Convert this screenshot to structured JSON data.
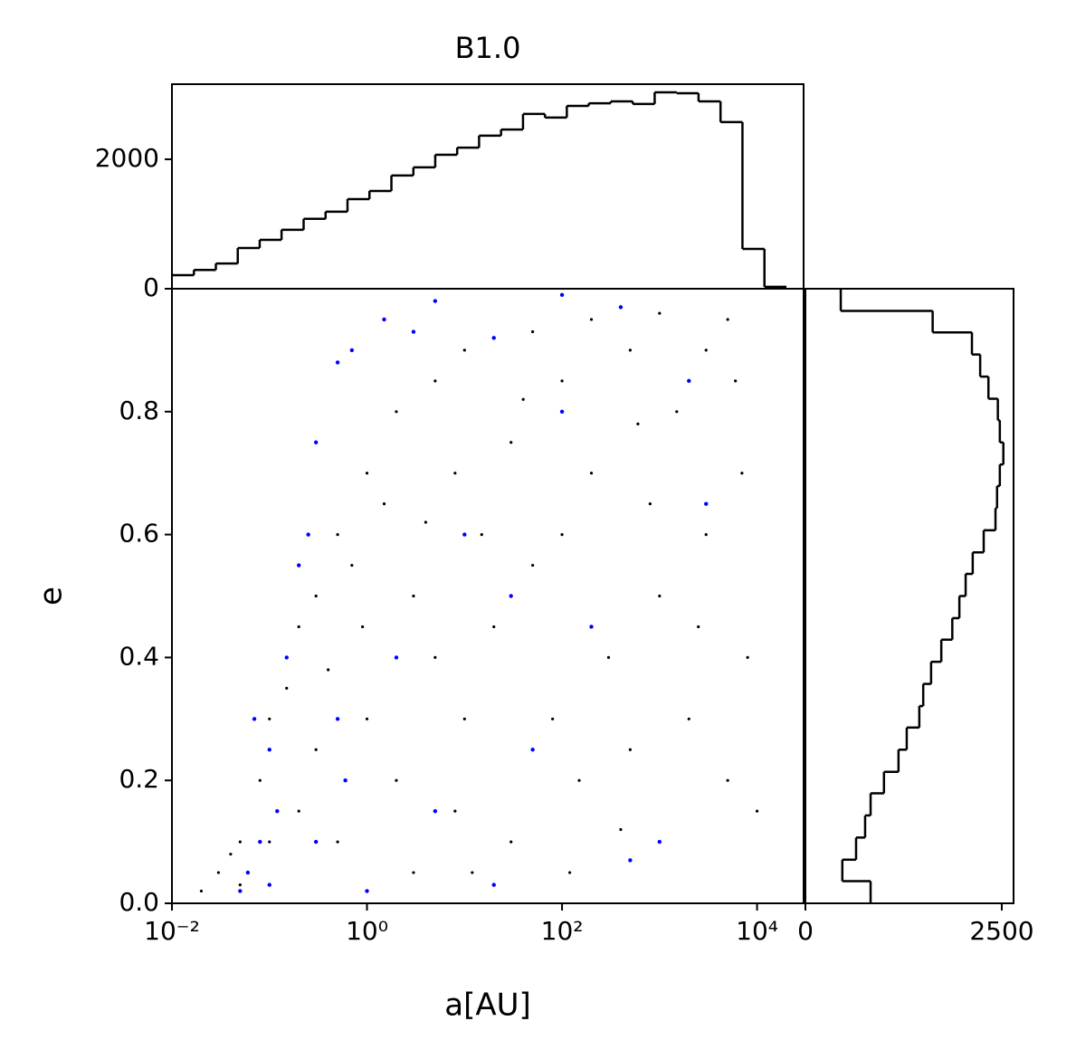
{
  "chart_data": [
    {
      "type": "scatter",
      "title": "B1.0",
      "xlabel": "a[AU]",
      "ylabel": "e",
      "xscale": "log",
      "xlim": [
        0.01,
        30000
      ],
      "ylim": [
        0,
        1
      ],
      "xticks": [
        {
          "value": 0.01,
          "label": "10⁻²"
        },
        {
          "value": 1,
          "label": "10⁰"
        },
        {
          "value": 100,
          "label": "10²"
        },
        {
          "value": 10000,
          "label": "10⁴"
        }
      ],
      "yticks": [
        {
          "value": 0,
          "label": "0.0"
        },
        0.2,
        0.4,
        0.6,
        0.8
      ],
      "series": [
        {
          "color": "#000000",
          "x": [
            0.02,
            0.03,
            0.05,
            0.05,
            0.08,
            0.1,
            0.1,
            0.15,
            0.2,
            0.2,
            0.3,
            0.3,
            0.5,
            0.5,
            0.7,
            1,
            1,
            1.5,
            2,
            2,
            3,
            3,
            5,
            5,
            8,
            8,
            10,
            10,
            15,
            20,
            20,
            30,
            30,
            50,
            50,
            80,
            100,
            100,
            150,
            200,
            200,
            300,
            500,
            500,
            800,
            1000,
            1000,
            1500,
            2000,
            3000,
            3000,
            5000,
            5000,
            7000,
            8000,
            10000,
            0.04,
            0.4,
            4,
            40,
            400,
            600,
            2500,
            6000,
            12,
            120,
            0.9
          ],
          "y": [
            0.02,
            0.05,
            0.1,
            0.03,
            0.2,
            0.3,
            0.1,
            0.35,
            0.45,
            0.15,
            0.5,
            0.25,
            0.6,
            0.1,
            0.55,
            0.7,
            0.3,
            0.65,
            0.8,
            0.2,
            0.5,
            0.05,
            0.85,
            0.4,
            0.7,
            0.15,
            0.9,
            0.3,
            0.6,
            0.92,
            0.45,
            0.75,
            0.1,
            0.55,
            0.93,
            0.3,
            0.85,
            0.6,
            0.2,
            0.95,
            0.7,
            0.4,
            0.9,
            0.25,
            0.65,
            0.96,
            0.5,
            0.8,
            0.3,
            0.9,
            0.6,
            0.95,
            0.2,
            0.7,
            0.4,
            0.15,
            0.08,
            0.38,
            0.62,
            0.82,
            0.12,
            0.78,
            0.45,
            0.85,
            0.05,
            0.05,
            0.45
          ]
        },
        {
          "color": "#0000ff",
          "x": [
            0.05,
            0.06,
            0.08,
            0.1,
            0.1,
            0.15,
            0.2,
            0.25,
            0.3,
            0.5,
            0.7,
            1.5,
            3,
            5,
            20,
            100,
            400,
            0.12,
            0.3,
            0.5,
            1,
            2,
            5,
            10,
            20,
            50,
            100,
            200,
            500,
            1000,
            2000,
            0.07,
            0.6,
            30,
            3000
          ],
          "y": [
            0.02,
            0.05,
            0.1,
            0.25,
            0.03,
            0.4,
            0.55,
            0.6,
            0.75,
            0.88,
            0.9,
            0.95,
            0.93,
            0.98,
            0.92,
            0.99,
            0.97,
            0.15,
            0.1,
            0.3,
            0.02,
            0.4,
            0.15,
            0.6,
            0.03,
            0.25,
            0.8,
            0.45,
            0.07,
            0.1,
            0.85,
            0.3,
            0.2,
            0.5,
            0.65
          ]
        }
      ]
    },
    {
      "type": "histogram",
      "orientation": "vertical",
      "xscale": "log",
      "color": "#000000",
      "xlim": [
        0.01,
        30000
      ],
      "ylim": [
        0,
        3160
      ],
      "yticks": [
        0,
        2000
      ],
      "bins": [
        0.01,
        0.0168,
        0.0282,
        0.0473,
        0.0794,
        0.133,
        0.224,
        0.376,
        0.631,
        1.06,
        1.78,
        2.99,
        5.01,
        8.41,
        14.1,
        23.7,
        39.8,
        66.8,
        112,
        188,
        316,
        531,
        891,
        1500,
        2510,
        4220,
        7080,
        11900,
        20000
      ],
      "counts": [
        210,
        290,
        390,
        630,
        755,
        910,
        1080,
        1190,
        1385,
        1510,
        1750,
        1875,
        2070,
        2180,
        2365,
        2460,
        2700,
        2645,
        2825,
        2865,
        2895,
        2855,
        3035,
        3020,
        2895,
        2575,
        615,
        30
      ]
    },
    {
      "type": "histogram",
      "orientation": "horizontal",
      "color": "#000000",
      "xlim": [
        0,
        2650
      ],
      "ylim": [
        0,
        1
      ],
      "xticks": [
        0,
        2500
      ],
      "bins": [
        0,
        0.036,
        0.071,
        0.107,
        0.143,
        0.179,
        0.214,
        0.25,
        0.286,
        0.321,
        0.357,
        0.393,
        0.429,
        0.464,
        0.5,
        0.536,
        0.571,
        0.607,
        0.643,
        0.679,
        0.714,
        0.75,
        0.786,
        0.821,
        0.857,
        0.893,
        0.929,
        0.964,
        1
      ],
      "counts": [
        830,
        470,
        645,
        760,
        830,
        1000,
        1185,
        1290,
        1450,
        1500,
        1600,
        1730,
        1870,
        1960,
        2040,
        2130,
        2270,
        2420,
        2440,
        2475,
        2520,
        2475,
        2450,
        2330,
        2225,
        2120,
        1620,
        450
      ]
    }
  ]
}
